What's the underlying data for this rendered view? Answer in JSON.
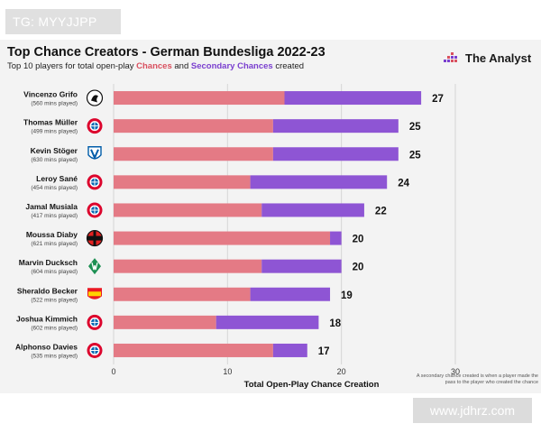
{
  "watermark_top": "TG: MYYJJPP",
  "watermark_bottom": "www.jdhrz.com",
  "header": {
    "title": "Top Chance Creators - German Bundesliga 2022-23",
    "subtitle_prefix": "Top 10 players for total open-play ",
    "subtitle_chances": "Chances",
    "subtitle_and": " and ",
    "subtitle_secondary": "Secondary Chances",
    "subtitle_suffix": " created",
    "brand": "The Analyst"
  },
  "footnote": "A secondary chance created is when a player made the pass to the player who created the chance",
  "colors": {
    "chances": "#e47a85",
    "secondary": "#8e55d4",
    "background": "#f3f3f3"
  },
  "chart_data": {
    "type": "bar",
    "orientation": "horizontal",
    "stacked": true,
    "title": "Top Chance Creators - German Bundesliga 2022-23",
    "xlabel": "Total Open-Play Chance Creation",
    "ylabel": "",
    "xlim": [
      0,
      30
    ],
    "xticks": [
      0,
      10,
      20,
      30
    ],
    "grid": true,
    "categories": [
      "Vincenzo Grifo",
      "Thomas Müller",
      "Kevin Stöger",
      "Leroy Sané",
      "Jamal Musiala",
      "Moussa Diaby",
      "Marvin Ducksch",
      "Sheraldo Becker",
      "Joshua Kimmich",
      "Alphonso Davies"
    ],
    "minutes": [
      "(560 mins played)",
      "(499 mins played)",
      "(630 mins played)",
      "(454 mins played)",
      "(417 mins played)",
      "(621 mins played)",
      "(604 mins played)",
      "(522 mins played)",
      "(602 mins played)",
      "(535 mins played)"
    ],
    "clubs": [
      "freiburg-badge-icon",
      "bayern-badge-icon",
      "bochum-badge-icon",
      "bayern-badge-icon",
      "bayern-badge-icon",
      "leverkusen-badge-icon",
      "werder-badge-icon",
      "union-badge-icon",
      "bayern-badge-icon",
      "bayern-badge-icon"
    ],
    "series": [
      {
        "name": "Chances",
        "values": [
          15,
          14,
          14,
          12,
          13,
          19,
          13,
          12,
          9,
          14
        ]
      },
      {
        "name": "Secondary Chances",
        "values": [
          12,
          11,
          11,
          12,
          9,
          1,
          7,
          7,
          9,
          3
        ]
      }
    ],
    "totals": [
      27,
      25,
      25,
      24,
      22,
      20,
      20,
      19,
      18,
      17
    ]
  }
}
